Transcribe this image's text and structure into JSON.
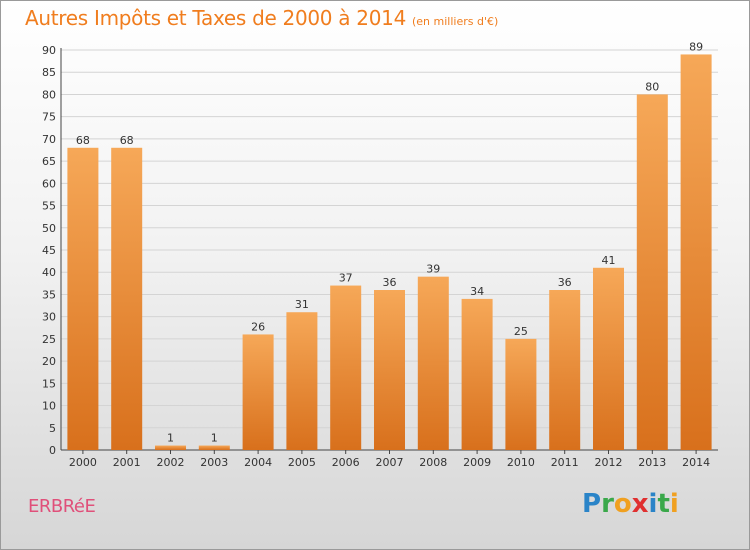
{
  "title": "Autres Impôts et Taxes de 2000 à 2014",
  "unit_label": "(en milliers d'€)",
  "commune": "ERBRéE",
  "logo": {
    "letters": [
      {
        "ch": "P",
        "color": "#2a84c8"
      },
      {
        "ch": "r",
        "color": "#3aa84a"
      },
      {
        "ch": "o",
        "color": "#f0a020"
      },
      {
        "ch": "x",
        "color": "#e03030"
      },
      {
        "ch": "i",
        "color": "#2a84c8"
      },
      {
        "ch": "t",
        "color": "#3aa84a"
      },
      {
        "ch": "i",
        "color": "#f0a020"
      }
    ]
  },
  "colors": {
    "bar_light": "#f6a858",
    "bar_dark": "#d8701c",
    "title": "#f07d1e",
    "commune": "#e0507a",
    "grid": "#d4d4d4"
  },
  "chart_data": {
    "type": "bar",
    "categories": [
      "2000",
      "2001",
      "2002",
      "2003",
      "2004",
      "2005",
      "2006",
      "2007",
      "2008",
      "2009",
      "2010",
      "2011",
      "2012",
      "2013",
      "2014"
    ],
    "values": [
      68,
      68,
      1,
      1,
      26,
      31,
      37,
      36,
      39,
      34,
      25,
      36,
      41,
      80,
      89
    ],
    "ylim": [
      0,
      90
    ],
    "yticks": [
      0,
      5,
      10,
      15,
      20,
      25,
      30,
      35,
      40,
      45,
      50,
      55,
      60,
      65,
      70,
      75,
      80,
      85,
      90
    ],
    "grid": true
  }
}
